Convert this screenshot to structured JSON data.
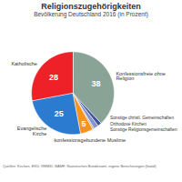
{
  "chart_data": {
    "type": "pie",
    "title": "Religionszugehörigkeiten",
    "subtitle": "Bevölkerung Deutschland 2016 (in Prozent)",
    "caption": "Quellen: Kirchen, EKD, REMID, BAMF, Statistisches Bundesamt, eigene Berechnungen (fowid)",
    "categories": [
      "Konfessionsfreie ohne Religion",
      "Sonstige christl. Gemeinschaften",
      "Orthodoxe Kirchen",
      "Sonstige Religionsgemeinschaften",
      "konfessionsgebundene Muslime",
      "Evangelische Kirche",
      "Katholische"
    ],
    "values": [
      38,
      1.5,
      1.9,
      0.6,
      5,
      25,
      28
    ],
    "value_labels": [
      "38",
      null,
      null,
      null,
      "5",
      "25",
      "28"
    ],
    "colors": [
      "#8aa397",
      "#3f51a3",
      "#8a93c9",
      "#b0b0b0",
      "#f7931e",
      "#2b7bd0",
      "#ee2129"
    ],
    "data_labels": true
  }
}
